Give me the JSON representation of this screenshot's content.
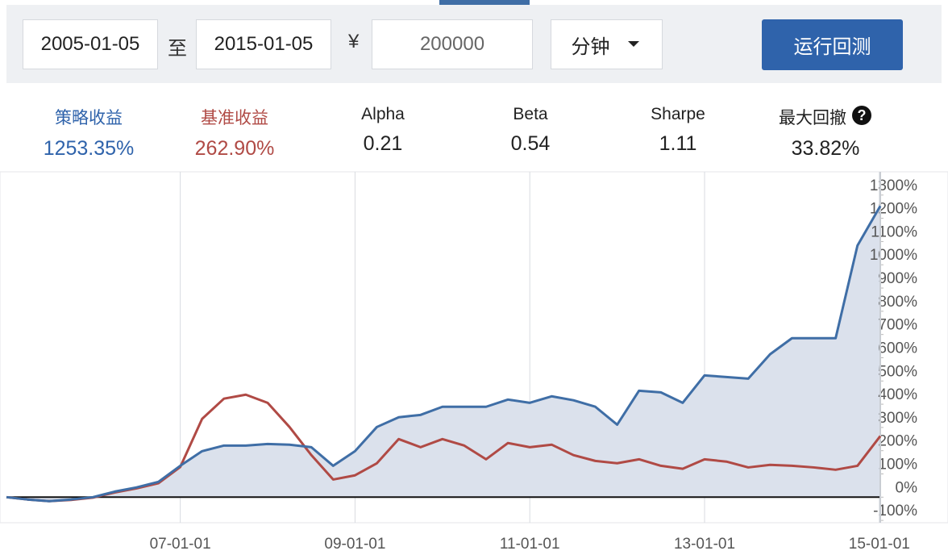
{
  "form": {
    "start_date": "2005-01-05",
    "to": "至",
    "end_date": "2015-01-05",
    "currency": "¥",
    "capital": "200000",
    "frequency": "分钟",
    "run_button": "运行回测"
  },
  "metrics": [
    {
      "label": "策略收益",
      "value": "1253.35%"
    },
    {
      "label": "基准收益",
      "value": "262.90%"
    },
    {
      "label": "Alpha",
      "value": "0.21"
    },
    {
      "label": "Beta",
      "value": "0.54"
    },
    {
      "label": "Sharpe",
      "value": "1.11"
    },
    {
      "label": "最大回撤",
      "value": "33.82%"
    }
  ],
  "chart_data": {
    "type": "line",
    "x": [
      "05-01-05",
      "05-04-01",
      "05-07-01",
      "05-10-01",
      "06-01-01",
      "06-04-01",
      "06-07-01",
      "06-10-01",
      "07-01-01",
      "07-04-01",
      "07-07-01",
      "07-10-01",
      "08-01-01",
      "08-04-01",
      "08-07-01",
      "08-10-01",
      "09-01-01",
      "09-04-01",
      "09-07-01",
      "09-10-01",
      "10-01-01",
      "10-04-01",
      "10-07-01",
      "10-10-01",
      "11-01-01",
      "11-04-01",
      "11-07-01",
      "11-10-01",
      "12-01-01",
      "12-04-01",
      "12-07-01",
      "12-10-01",
      "13-01-01",
      "13-04-01",
      "13-07-01",
      "13-10-01",
      "14-01-01",
      "14-04-01",
      "14-07-01",
      "14-10-01",
      "15-01-05"
    ],
    "series": [
      {
        "color": "#3f6ea6",
        "values": [
          0,
          -10,
          -17,
          -10,
          0,
          24,
          42,
          66,
          135,
          198,
          222,
          222,
          229,
          226,
          215,
          135,
          198,
          302,
          344,
          354,
          389,
          389,
          389,
          420,
          406,
          434,
          417,
          389,
          312,
          458,
          451,
          406,
          524,
          517,
          510,
          615,
          684,
          684,
          684,
          1083,
          1253
        ]
      },
      {
        "color": "#b04a45",
        "values": [
          0,
          -10,
          -17,
          -12,
          -2,
          20,
          38,
          60,
          130,
          337,
          424,
          441,
          406,
          302,
          181,
          76,
          94,
          146,
          250,
          215,
          250,
          222,
          163,
          233,
          215,
          226,
          181,
          156,
          146,
          163,
          135,
          122,
          163,
          153,
          128,
          139,
          135,
          128,
          118,
          135,
          263
        ]
      }
    ],
    "xlim": [
      "05-01-05",
      "15-01-05"
    ],
    "xticks": [
      "07-01-01",
      "09-01-01",
      "11-01-01",
      "13-01-01",
      "15-01-01"
    ],
    "ylim": [
      -110,
      1400
    ],
    "yticks": [
      {
        "value": -100,
        "label": "-100%"
      },
      {
        "value": 0,
        "label": "0%"
      },
      {
        "value": 100,
        "label": "100%"
      },
      {
        "value": 200,
        "label": "200%"
      },
      {
        "value": 300,
        "label": "300%"
      },
      {
        "value": 400,
        "label": "400%"
      },
      {
        "value": 500,
        "label": "500%"
      },
      {
        "value": 600,
        "label": "600%"
      },
      {
        "value": 700,
        "label": "700%"
      },
      {
        "value": 800,
        "label": "800%"
      },
      {
        "value": 900,
        "label": "900%"
      },
      {
        "value": 1000,
        "label": "1000%"
      },
      {
        "value": 1100,
        "label": "1100%"
      },
      {
        "value": 1200,
        "label": "1200%"
      },
      {
        "value": 1300,
        "label": "1300%"
      }
    ],
    "fill_color": "#dbe1ec"
  }
}
